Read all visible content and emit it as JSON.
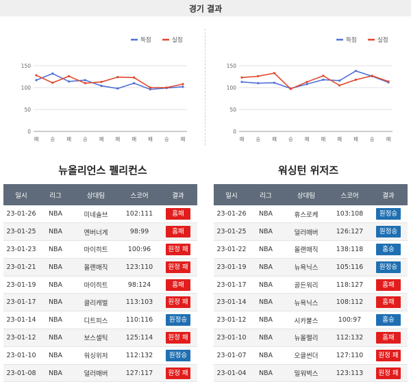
{
  "page": {
    "title": "경기 결과"
  },
  "colors": {
    "scored": "#4f6fd8",
    "allowed": "#e0462a",
    "win": "#1f6fb2",
    "loss": "#e21d1d",
    "header": "#5f6b7a"
  },
  "legend": {
    "scored": "득점",
    "allowed": "실점"
  },
  "chart_data": [
    {
      "type": "line",
      "categories": [
        "패",
        "승",
        "패",
        "승",
        "패",
        "패",
        "패",
        "패",
        "승",
        "패"
      ],
      "series": [
        {
          "name": "득점",
          "values": [
            117,
            132,
            114,
            117,
            104,
            98,
            110,
            96,
            99,
            102
          ]
        },
        {
          "name": "실점",
          "values": [
            128,
            111,
            126,
            110,
            113,
            124,
            123,
            100,
            100,
            108
          ]
        }
      ],
      "y_ticks": [
        0,
        50,
        100,
        150
      ],
      "ylim": [
        0,
        150
      ],
      "legend_position": "top-right",
      "grid": true
    },
    {
      "type": "line",
      "categories": [
        "패",
        "승",
        "패",
        "승",
        "패",
        "패",
        "패",
        "패",
        "승",
        "패"
      ],
      "series": [
        {
          "name": "득점",
          "values": [
            113,
            110,
            111,
            98,
            108,
            118,
            116,
            138,
            126,
            112
          ]
        },
        {
          "name": "실점",
          "values": [
            123,
            126,
            133,
            97,
            113,
            127,
            105,
            118,
            127,
            114
          ]
        }
      ],
      "y_ticks": [
        0,
        50,
        100,
        150
      ],
      "ylim": [
        0,
        150
      ],
      "legend_position": "top-right",
      "grid": true
    }
  ],
  "columns": [
    "일시",
    "리그",
    "상대팀",
    "스코어",
    "결과"
  ],
  "teams": [
    {
      "name": "뉴올리언스 펠리컨스",
      "rows": [
        {
          "date": "23-01-26",
          "league": "NBA",
          "opponent": "미네솔브",
          "score": "102:111",
          "result": "홈패",
          "type": "loss"
        },
        {
          "date": "23-01-25",
          "league": "NBA",
          "opponent": "멘버너게",
          "score": "98:99",
          "result": "홈패",
          "type": "loss"
        },
        {
          "date": "23-01-23",
          "league": "NBA",
          "opponent": "마이히트",
          "score": "100:96",
          "result": "원정 패",
          "type": "loss"
        },
        {
          "date": "23-01-21",
          "league": "NBA",
          "opponent": "올랜매직",
          "score": "123:110",
          "result": "원정 패",
          "type": "loss"
        },
        {
          "date": "23-01-19",
          "league": "NBA",
          "opponent": "마이히트",
          "score": "98:124",
          "result": "홈패",
          "type": "loss"
        },
        {
          "date": "23-01-17",
          "league": "NBA",
          "opponent": "클리캐벌",
          "score": "113:103",
          "result": "원정 패",
          "type": "loss"
        },
        {
          "date": "23-01-14",
          "league": "NBA",
          "opponent": "디트피스",
          "score": "110:116",
          "result": "원정승",
          "type": "win"
        },
        {
          "date": "23-01-12",
          "league": "NBA",
          "opponent": "보스셀틱",
          "score": "125:114",
          "result": "원정 패",
          "type": "loss"
        },
        {
          "date": "23-01-10",
          "league": "NBA",
          "opponent": "워싱위저",
          "score": "112:132",
          "result": "원정승",
          "type": "win"
        },
        {
          "date": "23-01-08",
          "league": "NBA",
          "opponent": "덜러매버",
          "score": "127:117",
          "result": "원정 패",
          "type": "loss"
        }
      ]
    },
    {
      "name": "워싱턴 위저즈",
      "rows": [
        {
          "date": "23-01-26",
          "league": "NBA",
          "opponent": "휴스로케",
          "score": "103:108",
          "result": "원정승",
          "type": "win"
        },
        {
          "date": "23-01-25",
          "league": "NBA",
          "opponent": "덜러매버",
          "score": "126:127",
          "result": "원정승",
          "type": "win"
        },
        {
          "date": "23-01-22",
          "league": "NBA",
          "opponent": "올랜매직",
          "score": "138:118",
          "result": "홈승",
          "type": "win"
        },
        {
          "date": "23-01-19",
          "league": "NBA",
          "opponent": "뉴욕닉스",
          "score": "105:116",
          "result": "원정승",
          "type": "win"
        },
        {
          "date": "23-01-17",
          "league": "NBA",
          "opponent": "골든워리",
          "score": "118:127",
          "result": "홈패",
          "type": "loss"
        },
        {
          "date": "23-01-14",
          "league": "NBA",
          "opponent": "뉴욕닉스",
          "score": "108:112",
          "result": "홈패",
          "type": "loss"
        },
        {
          "date": "23-01-12",
          "league": "NBA",
          "opponent": "시카불스",
          "score": "100:97",
          "result": "홈승",
          "type": "win"
        },
        {
          "date": "23-01-10",
          "league": "NBA",
          "opponent": "뉴올펠리",
          "score": "112:132",
          "result": "홈패",
          "type": "loss"
        },
        {
          "date": "23-01-07",
          "league": "NBA",
          "opponent": "오클썬더",
          "score": "127:110",
          "result": "원정 패",
          "type": "loss"
        },
        {
          "date": "23-01-04",
          "league": "NBA",
          "opponent": "밀워벅스",
          "score": "123:113",
          "result": "원정 패",
          "type": "loss"
        }
      ]
    }
  ]
}
